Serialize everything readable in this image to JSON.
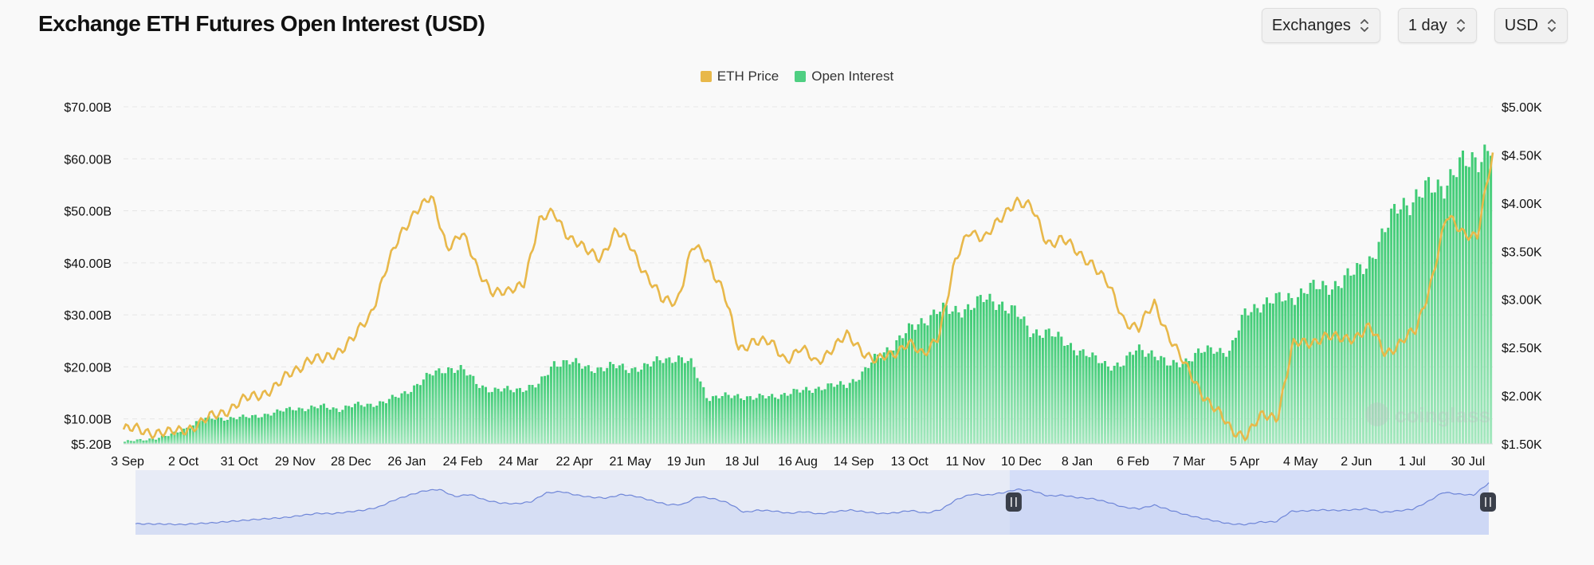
{
  "page": {
    "title": "Exchange ETH Futures Open Interest (USD)",
    "controls": [
      {
        "label": "Exchanges"
      },
      {
        "label": "1 day"
      },
      {
        "label": "USD"
      }
    ]
  },
  "chart_data": {
    "type": "bar",
    "legend_position": "top-center",
    "grid": true,
    "x_tick_labels": [
      "3 Sep",
      "2 Oct",
      "31 Oct",
      "29 Nov",
      "28 Dec",
      "26 Jan",
      "24 Feb",
      "24 Mar",
      "22 Apr",
      "21 May",
      "19 Jun",
      "18 Jul",
      "16 Aug",
      "14 Sep",
      "13 Oct",
      "11 Nov",
      "10 Dec",
      "8 Jan",
      "6 Feb",
      "7 Mar",
      "5 Apr",
      "4 May",
      "2 Jun",
      "1 Jul",
      "30 Jul"
    ],
    "y_left": {
      "ticks": [
        70,
        60,
        50,
        40,
        30,
        20,
        10,
        5.2
      ],
      "tick_labels": [
        "$70.00B",
        "$60.00B",
        "$50.00B",
        "$40.00B",
        "$30.00B",
        "$20.00B",
        "$10.00B",
        "$5.20B"
      ],
      "range": [
        5.2,
        70
      ]
    },
    "y_right": {
      "ticks": [
        5000,
        4500,
        4000,
        3500,
        3000,
        2500,
        2000,
        1500
      ],
      "tick_labels": [
        "$5.00K",
        "$4.50K",
        "$4.00K",
        "$3.50K",
        "$3.00K",
        "$2.50K",
        "$2.00K",
        "$1.50K"
      ],
      "range": [
        1500,
        5000
      ]
    },
    "series": [
      {
        "name": "ETH Price",
        "color": "#e8b84a",
        "axis": "right",
        "kind": "line",
        "values": [
          1650,
          1640,
          1630,
          1600,
          1660,
          1710,
          1800,
          1880,
          1960,
          2030,
          2100,
          2250,
          2380,
          2360,
          2480,
          2600,
          2820,
          3300,
          3650,
          3950,
          4050,
          3550,
          3700,
          3300,
          3100,
          3050,
          3180,
          3800,
          3900,
          3650,
          3500,
          3450,
          3700,
          3550,
          3250,
          2980,
          3000,
          3550,
          3400,
          3100,
          2450,
          2600,
          2540,
          2380,
          2500,
          2330,
          2500,
          2610,
          2480,
          2360,
          2420,
          2580,
          2390,
          2650,
          3350,
          3720,
          3650,
          3810,
          4050,
          3950,
          3590,
          3640,
          3470,
          3390,
          3140,
          2800,
          2700,
          2950,
          2620,
          2300,
          2060,
          1850,
          1640,
          1600,
          1780,
          1790,
          2520,
          2550,
          2620,
          2580,
          2620,
          2700,
          2450,
          2550,
          2670,
          3200,
          3850,
          3720,
          3650,
          4500
        ]
      },
      {
        "name": "Open Interest",
        "color": "#4fcf82",
        "axis": "left",
        "kind": "bar",
        "values": [
          5.6,
          5.9,
          6.3,
          6.9,
          8.2,
          9.9,
          10.1,
          10.2,
          10.3,
          10.8,
          11.3,
          12.1,
          12.0,
          12.4,
          11.9,
          12.6,
          12.8,
          13.3,
          14.6,
          16.5,
          18.6,
          19.8,
          19.4,
          16.8,
          15.4,
          15.6,
          15.9,
          16.5,
          20.9,
          21.0,
          19.9,
          19.7,
          20.1,
          19.7,
          19.9,
          21.7,
          21.6,
          20.5,
          14.0,
          14.3,
          14.5,
          14.0,
          14.3,
          14.8,
          15.3,
          15.9,
          16.3,
          16.6,
          18.5,
          21.9,
          24.1,
          26.8,
          28.9,
          31.0,
          30.6,
          31.6,
          32.9,
          32.4,
          30.6,
          26.8,
          26.8,
          25.2,
          23.5,
          21.8,
          20.4,
          20.4,
          23.6,
          22.7,
          20.2,
          21.1,
          22.7,
          23.4,
          23.0,
          30.3,
          32.2,
          32.8,
          33.4,
          34.9,
          35.3,
          36.0,
          37.8,
          40.2,
          45.2,
          51.5,
          52.0,
          54.3,
          55.4,
          58.4,
          60.1,
          62.5
        ]
      }
    ],
    "navigator": {
      "selection_start": 0.646,
      "selection_end": 1.0
    }
  }
}
